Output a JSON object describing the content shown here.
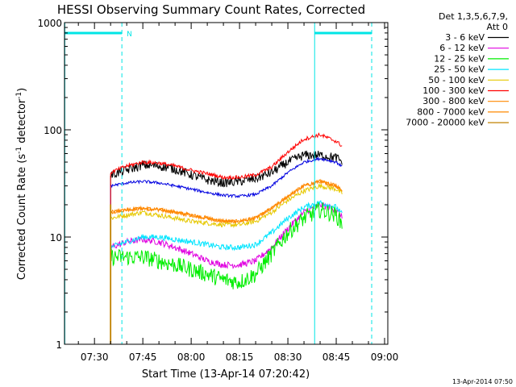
{
  "chart_data": {
    "type": "line",
    "title": "HESSI Observing Summary Count Rates, Corrected",
    "xlabel": "Start Time (13-Apr-14 07:20:42)",
    "ylabel_main": "Corrected Count Rate (s",
    "ylabel_sup1": "-1",
    "ylabel_mid": " detector",
    "ylabel_sup2": "-1",
    "ylabel_end": ")",
    "x_unit": "minutes after 07:00",
    "xlim": [
      20.7,
      121
    ],
    "ylim": [
      1,
      1000
    ],
    "yscale": "log",
    "x_ticks": [
      {
        "v": 30,
        "label": "07:30"
      },
      {
        "v": 45,
        "label": "07:45"
      },
      {
        "v": 60,
        "label": "08:00"
      },
      {
        "v": 75,
        "label": "08:15"
      },
      {
        "v": 90,
        "label": "08:30"
      },
      {
        "v": 105,
        "label": "08:45"
      },
      {
        "v": 120,
        "label": "09:00"
      }
    ],
    "y_ticks": [
      {
        "v": 1,
        "label": "1"
      },
      {
        "v": 10,
        "label": "10"
      },
      {
        "v": 100,
        "label": "100"
      },
      {
        "v": 1000,
        "label": "1000"
      }
    ],
    "legend_header": [
      "Det 1,3,5,6,7,9,",
      "Att 0"
    ],
    "night_marker": "N",
    "timestamp": "13-Apr-2014 07:50",
    "vlines": [
      {
        "x": 20.8,
        "style": "solid"
      },
      {
        "x": 38.5,
        "style": "dashed"
      },
      {
        "x": 98.3,
        "style": "solid"
      },
      {
        "x": 116,
        "style": "dashed"
      }
    ],
    "top_bars": [
      [
        20.8,
        38.5
      ],
      [
        98.3,
        116
      ]
    ],
    "colors": {
      "cyan_markers": "#00e5e5"
    },
    "series": [
      {
        "name": "3 - 6 keV",
        "color": "#000000",
        "noise": 0.1,
        "points": [
          [
            35,
            38
          ],
          [
            40,
            42
          ],
          [
            45,
            47
          ],
          [
            50,
            46
          ],
          [
            55,
            43
          ],
          [
            60,
            38
          ],
          [
            65,
            34
          ],
          [
            70,
            32
          ],
          [
            75,
            33
          ],
          [
            80,
            35
          ],
          [
            85,
            40
          ],
          [
            90,
            50
          ],
          [
            95,
            58
          ],
          [
            100,
            58
          ],
          [
            105,
            55
          ],
          [
            107,
            50
          ]
        ]
      },
      {
        "name": "6 - 12 keV",
        "color": "#e000e0",
        "noise": 0.07,
        "points": [
          [
            35,
            8
          ],
          [
            40,
            9
          ],
          [
            45,
            9.5
          ],
          [
            50,
            9
          ],
          [
            55,
            8
          ],
          [
            60,
            7
          ],
          [
            65,
            6
          ],
          [
            70,
            5.5
          ],
          [
            75,
            5.5
          ],
          [
            80,
            6
          ],
          [
            85,
            8
          ],
          [
            90,
            12
          ],
          [
            95,
            17
          ],
          [
            100,
            20
          ],
          [
            105,
            18
          ],
          [
            107,
            15
          ]
        ]
      },
      {
        "name": "12 - 25 keV",
        "color": "#00ee00",
        "noise": 0.18,
        "points": [
          [
            35,
            6.5
          ],
          [
            40,
            6.5
          ],
          [
            45,
            6.5
          ],
          [
            50,
            6
          ],
          [
            55,
            5.5
          ],
          [
            60,
            5
          ],
          [
            65,
            4.5
          ],
          [
            70,
            4
          ],
          [
            75,
            3.8
          ],
          [
            80,
            4.5
          ],
          [
            85,
            7
          ],
          [
            90,
            11
          ],
          [
            95,
            15
          ],
          [
            100,
            18
          ],
          [
            105,
            16
          ],
          [
            107,
            13
          ]
        ]
      },
      {
        "name": "25 - 50 keV",
        "color": "#00e5ff",
        "noise": 0.06,
        "points": [
          [
            35,
            8
          ],
          [
            40,
            9
          ],
          [
            45,
            10
          ],
          [
            50,
            10
          ],
          [
            55,
            9.5
          ],
          [
            60,
            9
          ],
          [
            65,
            8.5
          ],
          [
            70,
            8
          ],
          [
            75,
            8
          ],
          [
            80,
            8.5
          ],
          [
            85,
            11
          ],
          [
            90,
            15
          ],
          [
            95,
            19
          ],
          [
            100,
            21
          ],
          [
            105,
            19
          ],
          [
            107,
            16
          ]
        ]
      },
      {
        "name": "50 - 100 keV",
        "color": "#e6c800",
        "noise": 0.05,
        "points": [
          [
            35,
            15
          ],
          [
            40,
            16
          ],
          [
            45,
            17
          ],
          [
            50,
            16
          ],
          [
            55,
            15
          ],
          [
            60,
            14
          ],
          [
            65,
            13.5
          ],
          [
            70,
            13
          ],
          [
            75,
            13
          ],
          [
            80,
            14
          ],
          [
            85,
            17
          ],
          [
            90,
            22
          ],
          [
            95,
            27
          ],
          [
            100,
            30
          ],
          [
            105,
            28
          ],
          [
            107,
            25
          ]
        ]
      },
      {
        "name": "100 - 300 keV",
        "color": "#ff0000",
        "noise": 0.04,
        "points": [
          [
            35,
            40
          ],
          [
            40,
            46
          ],
          [
            45,
            50
          ],
          [
            50,
            49
          ],
          [
            55,
            46
          ],
          [
            60,
            42
          ],
          [
            65,
            39
          ],
          [
            70,
            36
          ],
          [
            75,
            36
          ],
          [
            80,
            38
          ],
          [
            85,
            45
          ],
          [
            90,
            62
          ],
          [
            95,
            82
          ],
          [
            100,
            90
          ],
          [
            105,
            78
          ],
          [
            107,
            70
          ]
        ]
      },
      {
        "name": "300 - 800 keV",
        "color": "#ff8800",
        "noise": 0.04,
        "points": [
          [
            35,
            17
          ],
          [
            40,
            18
          ],
          [
            45,
            18.5
          ],
          [
            50,
            18
          ],
          [
            55,
            17
          ],
          [
            60,
            16
          ],
          [
            65,
            15
          ],
          [
            70,
            14
          ],
          [
            75,
            14
          ],
          [
            80,
            15
          ],
          [
            85,
            18.5
          ],
          [
            90,
            24
          ],
          [
            95,
            30
          ],
          [
            100,
            33
          ],
          [
            105,
            30
          ],
          [
            107,
            27
          ]
        ]
      },
      {
        "name": "800 - 7000 keV",
        "color": "#ff8800",
        "noise": 0.04,
        "points": [
          [
            35,
            17
          ],
          [
            40,
            18
          ],
          [
            45,
            18.5
          ],
          [
            50,
            18
          ],
          [
            55,
            17
          ],
          [
            60,
            16
          ],
          [
            65,
            15
          ],
          [
            70,
            14
          ],
          [
            75,
            14
          ],
          [
            80,
            15
          ],
          [
            85,
            18.5
          ],
          [
            90,
            24
          ],
          [
            95,
            30
          ],
          [
            100,
            33
          ],
          [
            105,
            30
          ],
          [
            107,
            27
          ]
        ]
      },
      {
        "name": "7000 - 20000 keV",
        "color": "#c08000",
        "noise": 0.0,
        "points": [
          [
            34.9,
            1
          ],
          [
            34.9,
            20
          ],
          [
            35.1,
            20
          ],
          [
            35.1,
            1
          ]
        ]
      },
      {
        "name": "",
        "color": "#0000e0",
        "noise": 0.03,
        "points": [
          [
            35,
            30
          ],
          [
            40,
            32
          ],
          [
            45,
            33
          ],
          [
            50,
            32
          ],
          [
            55,
            30
          ],
          [
            60,
            28
          ],
          [
            65,
            26
          ],
          [
            70,
            24.5
          ],
          [
            75,
            24
          ],
          [
            80,
            25
          ],
          [
            85,
            30
          ],
          [
            90,
            40
          ],
          [
            95,
            50
          ],
          [
            100,
            54
          ],
          [
            105,
            50
          ],
          [
            107,
            45
          ]
        ]
      }
    ]
  }
}
